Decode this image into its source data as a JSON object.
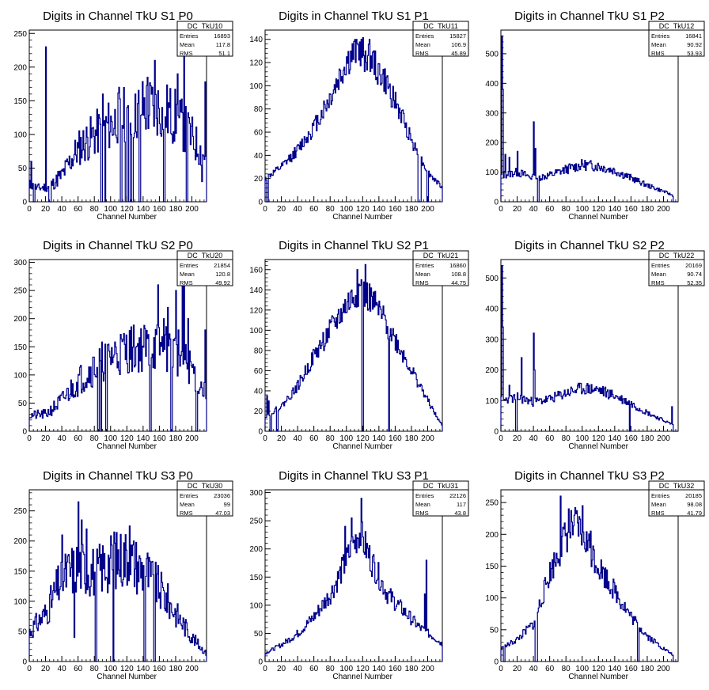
{
  "page": {
    "background": "#ffffff",
    "line_color": "#00008b"
  },
  "chart_data": [
    {
      "type": "histogram",
      "title": "Digits in Channel TkU S1 P0",
      "xlabel": "Channel Number",
      "xlim": [
        0,
        218
      ],
      "ylim": [
        0,
        255
      ],
      "x_ticks": [
        0,
        20,
        40,
        60,
        80,
        100,
        120,
        140,
        160,
        180,
        200
      ],
      "y_ticks": [
        0,
        50,
        100,
        150,
        200,
        250
      ],
      "stats": {
        "name": "DC_TkU10",
        "entries_label": "Entries",
        "entries": "16893",
        "mean_label": "Mean",
        "mean": "117.8",
        "rms_label": "RMS",
        "rms": "51.1"
      },
      "profile": [
        [
          0,
          25
        ],
        [
          10,
          20
        ],
        [
          20,
          22
        ],
        [
          30,
          28
        ],
        [
          40,
          40
        ],
        [
          50,
          60
        ],
        [
          60,
          80
        ],
        [
          80,
          100
        ],
        [
          100,
          115
        ],
        [
          120,
          130
        ],
        [
          140,
          140
        ],
        [
          160,
          140
        ],
        [
          180,
          125
        ],
        [
          200,
          95
        ],
        [
          218,
          60
        ]
      ],
      "noise": 0.35,
      "spikes": [
        [
          2,
          60
        ],
        [
          20,
          230
        ],
        [
          35,
          45
        ],
        [
          60,
          80
        ],
        [
          90,
          160
        ],
        [
          107,
          95
        ],
        [
          110,
          170
        ],
        [
          120,
          140
        ],
        [
          130,
          160
        ],
        [
          145,
          185
        ],
        [
          154,
          210
        ],
        [
          163,
          140
        ],
        [
          182,
          190
        ],
        [
          190,
          230
        ],
        [
          212,
          30
        ],
        [
          216,
          178
        ]
      ],
      "zeros": [
        5,
        6,
        24,
        25,
        26,
        88,
        89,
        93,
        112,
        113,
        118,
        119,
        122,
        123,
        126,
        127,
        135,
        136,
        165,
        166,
        193,
        194
      ],
      "seed": 11
    },
    {
      "type": "histogram",
      "title": "Digits in Channel TkU S1 P1",
      "xlabel": "Channel Number",
      "xlim": [
        0,
        218
      ],
      "ylim": [
        0,
        148
      ],
      "x_ticks": [
        0,
        20,
        40,
        60,
        80,
        100,
        120,
        140,
        160,
        180,
        200
      ],
      "y_ticks": [
        0,
        20,
        40,
        60,
        80,
        100,
        120,
        140
      ],
      "stats": {
        "name": "DC_TkU11",
        "entries_label": "Entries",
        "entries": "15827",
        "mean_label": "Mean",
        "mean": "106.9",
        "rms_label": "RMS",
        "rms": "45.89"
      },
      "profile": [
        [
          0,
          20
        ],
        [
          20,
          30
        ],
        [
          40,
          45
        ],
        [
          60,
          65
        ],
        [
          80,
          90
        ],
        [
          100,
          120
        ],
        [
          115,
          130
        ],
        [
          130,
          122
        ],
        [
          150,
          100
        ],
        [
          170,
          70
        ],
        [
          185,
          45
        ],
        [
          200,
          25
        ],
        [
          218,
          12
        ]
      ],
      "noise": 0.12,
      "spikes": [
        [
          112,
          140
        ],
        [
          118,
          140
        ],
        [
          128,
          140
        ],
        [
          100,
          125
        ]
      ],
      "zeros": [
        2,
        3,
        188,
        189,
        190,
        191,
        199,
        200
      ],
      "seed": 12
    },
    {
      "type": "histogram",
      "title": "Digits in Channel TkU S1 P2",
      "xlabel": "Channel Number",
      "xlim": [
        0,
        218
      ],
      "ylim": [
        0,
        580
      ],
      "x_ticks": [
        0,
        20,
        40,
        60,
        80,
        100,
        120,
        140,
        160,
        180,
        200
      ],
      "y_ticks": [
        0,
        100,
        200,
        300,
        400,
        500
      ],
      "stats": {
        "name": "DC_TkU12",
        "entries_label": "Entries",
        "entries": "16841",
        "mean_label": "Mean",
        "mean": "90.92",
        "rms_label": "RMS",
        "rms": "53.93"
      },
      "profile": [
        [
          0,
          90
        ],
        [
          20,
          100
        ],
        [
          40,
          80
        ],
        [
          60,
          90
        ],
        [
          80,
          110
        ],
        [
          100,
          125
        ],
        [
          120,
          120
        ],
        [
          140,
          105
        ],
        [
          160,
          80
        ],
        [
          180,
          55
        ],
        [
          200,
          35
        ],
        [
          212,
          20
        ]
      ],
      "noise": 0.15,
      "spikes": [
        [
          1,
          560
        ],
        [
          2,
          380
        ],
        [
          10,
          150
        ],
        [
          20,
          170
        ],
        [
          40,
          270
        ],
        [
          42,
          180
        ],
        [
          5,
          160
        ]
      ],
      "zeros": [
        45,
        46
      ],
      "end": 212,
      "seed": 13
    },
    {
      "type": "histogram",
      "title": "Digits in Channel TkU S2 P0",
      "xlabel": "Channel Number",
      "xlim": [
        0,
        218
      ],
      "ylim": [
        0,
        305
      ],
      "x_ticks": [
        0,
        20,
        40,
        60,
        80,
        100,
        120,
        140,
        160,
        180,
        200
      ],
      "y_ticks": [
        0,
        50,
        100,
        150,
        200,
        250,
        300
      ],
      "stats": {
        "name": "DC_TkU20",
        "entries_label": "Entries",
        "entries": "21854",
        "mean_label": "Mean",
        "mean": "120.8",
        "rms_label": "RMS",
        "rms": "49.92"
      },
      "profile": [
        [
          0,
          28
        ],
        [
          20,
          30
        ],
        [
          40,
          55
        ],
        [
          60,
          90
        ],
        [
          80,
          115
        ],
        [
          100,
          135
        ],
        [
          120,
          145
        ],
        [
          140,
          150
        ],
        [
          160,
          150
        ],
        [
          180,
          140
        ],
        [
          200,
          110
        ],
        [
          218,
          60
        ]
      ],
      "noise": 0.3,
      "spikes": [
        [
          158,
          260
        ],
        [
          165,
          200
        ],
        [
          170,
          220
        ],
        [
          180,
          250
        ],
        [
          183,
          180
        ],
        [
          188,
          260
        ],
        [
          190,
          300
        ],
        [
          195,
          200
        ],
        [
          216,
          180
        ]
      ],
      "zeros": [
        84,
        85,
        88,
        94,
        95,
        148,
        149,
        174,
        175,
        205,
        206
      ],
      "seed": 21
    },
    {
      "type": "histogram",
      "title": "Digits in Channel TkU S2 P1",
      "xlabel": "Channel Number",
      "xlim": [
        0,
        218
      ],
      "ylim": [
        0,
        170
      ],
      "x_ticks": [
        0,
        20,
        40,
        60,
        80,
        100,
        120,
        140,
        160,
        180,
        200
      ],
      "y_ticks": [
        0,
        20,
        40,
        60,
        80,
        100,
        120,
        140,
        160
      ],
      "stats": {
        "name": "DC_TkU21",
        "entries_label": "Entries",
        "entries": "16860",
        "mean_label": "Mean",
        "mean": "108.8",
        "rms_label": "RMS",
        "rms": "44.75"
      },
      "profile": [
        [
          0,
          15
        ],
        [
          20,
          25
        ],
        [
          40,
          45
        ],
        [
          60,
          75
        ],
        [
          80,
          100
        ],
        [
          100,
          125
        ],
        [
          115,
          140
        ],
        [
          130,
          130
        ],
        [
          150,
          105
        ],
        [
          170,
          75
        ],
        [
          190,
          45
        ],
        [
          210,
          15
        ],
        [
          218,
          5
        ]
      ],
      "noise": 0.12,
      "spikes": [
        [
          113,
          160
        ],
        [
          123,
          165
        ],
        [
          118,
          150
        ],
        [
          2,
          35
        ],
        [
          4,
          30
        ]
      ],
      "zeros": [
        6,
        7,
        14,
        15,
        119,
        120,
        152
      ],
      "seed": 22
    },
    {
      "type": "histogram",
      "title": "Digits in Channel TkU S2 P2",
      "xlabel": "Channel Number",
      "xlim": [
        0,
        218
      ],
      "ylim": [
        0,
        560
      ],
      "x_ticks": [
        0,
        20,
        40,
        60,
        80,
        100,
        120,
        140,
        160,
        180,
        200
      ],
      "y_ticks": [
        0,
        100,
        200,
        300,
        400,
        500
      ],
      "stats": {
        "name": "DC_TkU22",
        "entries_label": "Entries",
        "entries": "20169",
        "mean_label": "Mean",
        "mean": "90.74",
        "rms_label": "RMS",
        "rms": "52.35"
      },
      "profile": [
        [
          0,
          100
        ],
        [
          20,
          110
        ],
        [
          40,
          95
        ],
        [
          60,
          105
        ],
        [
          80,
          125
        ],
        [
          100,
          140
        ],
        [
          120,
          135
        ],
        [
          140,
          115
        ],
        [
          160,
          90
        ],
        [
          180,
          60
        ],
        [
          200,
          35
        ],
        [
          212,
          20
        ]
      ],
      "noise": 0.15,
      "spikes": [
        [
          1,
          540
        ],
        [
          2,
          340
        ],
        [
          25,
          240
        ],
        [
          40,
          320
        ],
        [
          41,
          200
        ],
        [
          10,
          150
        ],
        [
          210,
          80
        ]
      ],
      "zeros": [
        18,
        19,
        158
      ],
      "end": 212,
      "seed": 23
    },
    {
      "type": "histogram",
      "title": "Digits in Channel TkU S3 P0",
      "xlabel": "Channel Number",
      "xlim": [
        0,
        218
      ],
      "ylim": [
        0,
        285
      ],
      "x_ticks": [
        0,
        20,
        40,
        60,
        80,
        100,
        120,
        140,
        160,
        180,
        200
      ],
      "y_ticks": [
        0,
        50,
        100,
        150,
        200,
        250
      ],
      "stats": {
        "name": "DC_TkU30",
        "entries_label": "Entries",
        "entries": "23036",
        "mean_label": "Mean",
        "mean": "99",
        "rms_label": "RMS",
        "rms": "47.03"
      },
      "profile": [
        [
          0,
          50
        ],
        [
          20,
          80
        ],
        [
          40,
          140
        ],
        [
          60,
          160
        ],
        [
          80,
          150
        ],
        [
          100,
          165
        ],
        [
          120,
          175
        ],
        [
          140,
          150
        ],
        [
          160,
          120
        ],
        [
          180,
          80
        ],
        [
          200,
          40
        ],
        [
          218,
          12
        ]
      ],
      "noise": 0.3,
      "spikes": [
        [
          40,
          210
        ],
        [
          60,
          265
        ],
        [
          64,
          235
        ],
        [
          70,
          220
        ],
        [
          104,
          215
        ],
        [
          123,
          225
        ],
        [
          145,
          180
        ],
        [
          55,
          40
        ]
      ],
      "zeros": [
        81,
        82,
        103,
        141,
        142,
        153,
        154
      ],
      "seed": 31
    },
    {
      "type": "histogram",
      "title": "Digits in Channel TkU S3 P1",
      "xlabel": "Channel Number",
      "xlim": [
        0,
        218
      ],
      "ylim": [
        0,
        305
      ],
      "x_ticks": [
        0,
        20,
        40,
        60,
        80,
        100,
        120,
        140,
        160,
        180,
        200
      ],
      "y_ticks": [
        0,
        50,
        100,
        150,
        200,
        250,
        300
      ],
      "stats": {
        "name": "DC_TkU31",
        "entries_label": "Entries",
        "entries": "22126",
        "mean_label": "Mean",
        "mean": "117",
        "rms_label": "RMS",
        "rms": "43.8"
      },
      "profile": [
        [
          0,
          15
        ],
        [
          20,
          30
        ],
        [
          40,
          50
        ],
        [
          60,
          80
        ],
        [
          80,
          120
        ],
        [
          100,
          180
        ],
        [
          115,
          230
        ],
        [
          130,
          180
        ],
        [
          150,
          120
        ],
        [
          170,
          90
        ],
        [
          190,
          60
        ],
        [
          210,
          40
        ],
        [
          218,
          30
        ]
      ],
      "noise": 0.15,
      "spikes": [
        [
          118,
          290
        ],
        [
          106,
          255
        ],
        [
          98,
          240
        ],
        [
          110,
          200
        ],
        [
          198,
          180
        ],
        [
          196,
          120
        ]
      ],
      "zeros": [],
      "seed": 32
    },
    {
      "type": "histogram",
      "title": "Digits in Channel TkU S3 P2",
      "xlabel": "Channel Number",
      "xlim": [
        0,
        218
      ],
      "ylim": [
        0,
        270
      ],
      "x_ticks": [
        0,
        20,
        40,
        60,
        80,
        100,
        120,
        140,
        160,
        180,
        200
      ],
      "y_ticks": [
        0,
        50,
        100,
        150,
        200,
        250
      ],
      "stats": {
        "name": "DC_TkU32",
        "entries_label": "Entries",
        "entries": "20185",
        "mean_label": "Mean",
        "mean": "98.08",
        "rms_label": "RMS",
        "rms": "41.79"
      },
      "profile": [
        [
          0,
          20
        ],
        [
          20,
          35
        ],
        [
          40,
          60
        ],
        [
          60,
          140
        ],
        [
          80,
          200
        ],
        [
          90,
          215
        ],
        [
          100,
          200
        ],
        [
          120,
          150
        ],
        [
          140,
          110
        ],
        [
          160,
          70
        ],
        [
          180,
          40
        ],
        [
          200,
          20
        ],
        [
          212,
          10
        ]
      ],
      "noise": 0.15,
      "spikes": [
        [
          73,
          260
        ],
        [
          100,
          245
        ],
        [
          83,
          240
        ],
        [
          90,
          230
        ],
        [
          110,
          205
        ]
      ],
      "zeros": [
        3,
        4,
        42,
        43,
        44,
        168,
        169
      ],
      "end": 212,
      "seed": 33
    }
  ]
}
